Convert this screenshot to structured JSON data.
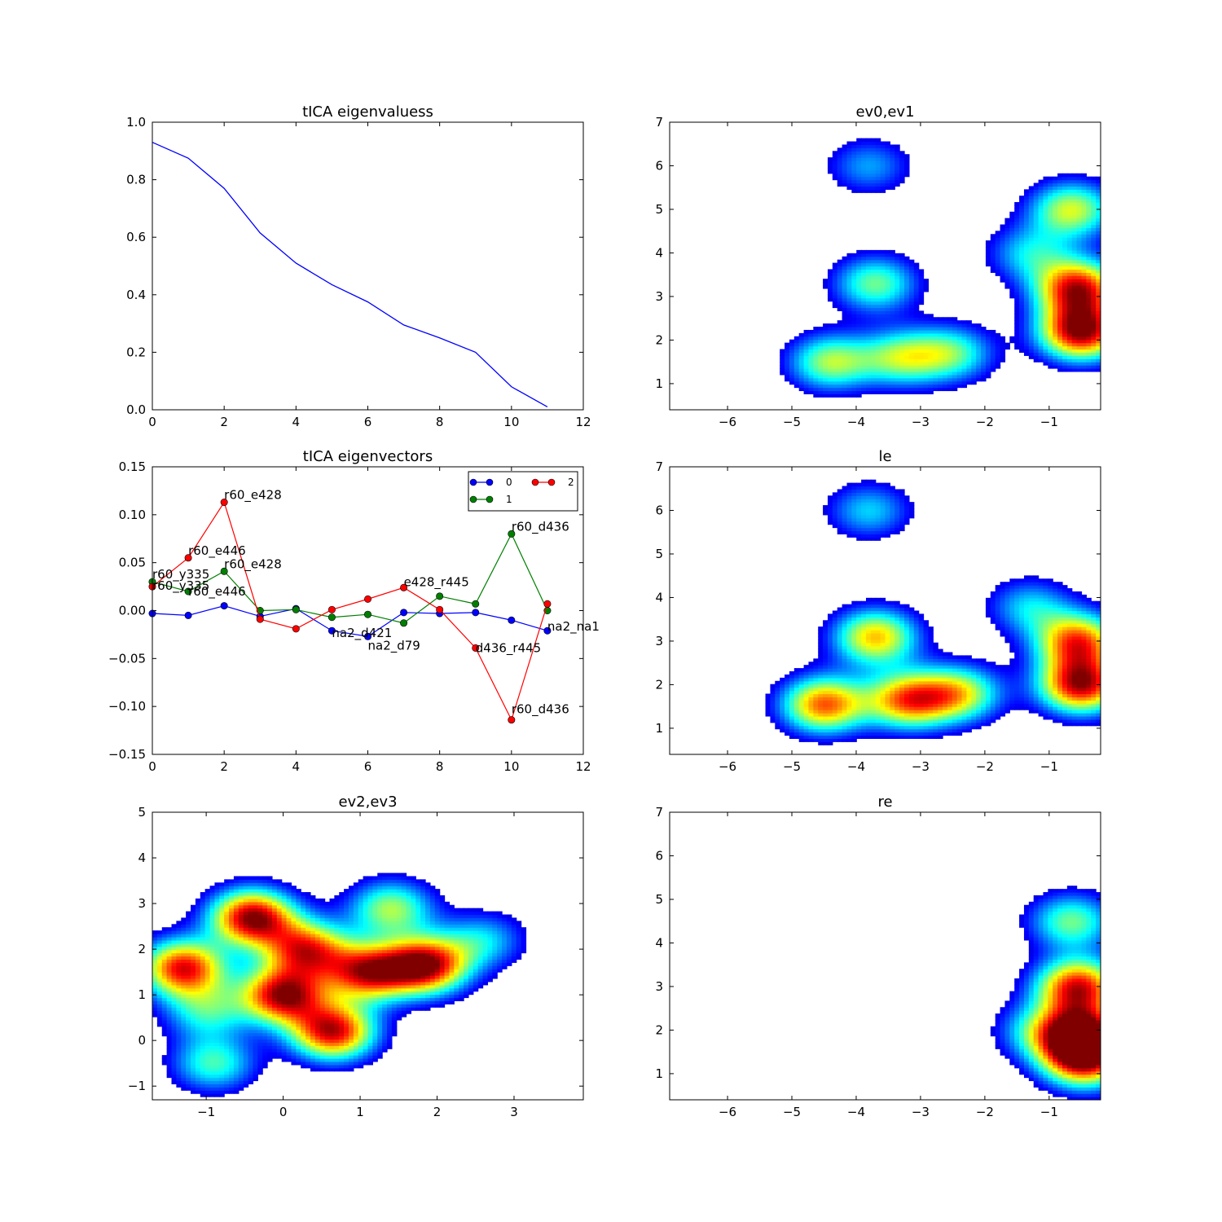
{
  "colors": {
    "series0": "#0000ff",
    "series1": "#007f00",
    "series2": "#ff0000",
    "colormap": "jet",
    "frame": "#000000",
    "background": "#ffffff"
  },
  "chart_data": [
    {
      "id": "eigenvalues",
      "type": "line",
      "title": "tICA eigenvaluess",
      "xlabel": "",
      "ylabel": "",
      "xlim": [
        0,
        12
      ],
      "ylim": [
        0.0,
        1.0
      ],
      "xticks": [
        "0",
        "2",
        "4",
        "6",
        "8",
        "10",
        "12"
      ],
      "yticks": [
        "0.0",
        "0.2",
        "0.4",
        "0.6",
        "0.8",
        "1.0"
      ],
      "x": [
        0,
        1,
        2,
        3,
        4,
        5,
        6,
        7,
        8,
        9,
        10,
        11
      ],
      "values": [
        0.93,
        0.875,
        0.77,
        0.615,
        0.51,
        0.435,
        0.375,
        0.295,
        0.25,
        0.2,
        0.08,
        0.01
      ],
      "grid": false
    },
    {
      "id": "eigenvectors",
      "type": "line",
      "title": "tICA eigenvectors",
      "xlabel": "",
      "ylabel": "",
      "xlim": [
        0,
        12
      ],
      "ylim": [
        -0.15,
        0.15
      ],
      "xticks": [
        "0",
        "2",
        "4",
        "6",
        "8",
        "10",
        "12"
      ],
      "yticks": [
        "−0.15",
        "−0.10",
        "−0.05",
        "0.00",
        "0.05",
        "0.10",
        "0.15"
      ],
      "x": [
        0,
        1,
        2,
        3,
        4,
        5,
        6,
        7,
        8,
        9,
        10,
        11
      ],
      "series": [
        {
          "name": "0",
          "values": [
            -0.003,
            -0.005,
            0.005,
            -0.006,
            0.002,
            -0.021,
            -0.027,
            -0.002,
            -0.003,
            -0.002,
            -0.01,
            -0.021
          ]
        },
        {
          "name": "1",
          "values": [
            0.03,
            0.02,
            0.041,
            0.0,
            0.001,
            -0.007,
            -0.004,
            -0.013,
            0.015,
            0.007,
            0.08,
            0.0
          ]
        },
        {
          "name": "2",
          "values": [
            0.025,
            0.055,
            0.113,
            -0.009,
            -0.019,
            0.001,
            0.012,
            0.024,
            0.001,
            -0.039,
            -0.114,
            0.007
          ]
        }
      ],
      "annotations": [
        {
          "x": 0,
          "y": 0.03,
          "text": "r60_y335"
        },
        {
          "x": 0,
          "y": 0.025,
          "text": "r60_y335"
        },
        {
          "x": 1,
          "y": 0.055,
          "text": "r60_e446"
        },
        {
          "x": 1,
          "y": 0.02,
          "text": "r60_e446"
        },
        {
          "x": 2,
          "y": 0.113,
          "text": "r60_e428"
        },
        {
          "x": 2,
          "y": 0.041,
          "text": "r60_e428"
        },
        {
          "x": 5,
          "y": -0.021,
          "text": "na2_d421"
        },
        {
          "x": 6,
          "y": -0.027,
          "text": "na2_d79"
        },
        {
          "x": 7,
          "y": 0.024,
          "text": "e428_r445"
        },
        {
          "x": 9,
          "y": -0.039,
          "text": "d436_r445"
        },
        {
          "x": 10,
          "y": 0.08,
          "text": "r60_d436"
        },
        {
          "x": 10,
          "y": -0.114,
          "text": "r60_d436"
        },
        {
          "x": 11,
          "y": -0.021,
          "text": "na2_na1"
        }
      ],
      "legend": {
        "placement": "top-right",
        "ncol": 2,
        "entries": [
          "0",
          "1",
          "2"
        ]
      },
      "grid": false
    },
    {
      "id": "ev2ev3",
      "type": "heatmap",
      "title": "ev2,ev3",
      "xlabel": "",
      "ylabel": "",
      "xlim": [
        -1.7,
        3.9
      ],
      "ylim": [
        -1.3,
        5.0
      ],
      "xticks": [
        "−1",
        "0",
        "1",
        "2",
        "3"
      ],
      "yticks": [
        "−1",
        "0",
        "1",
        "2",
        "3",
        "4",
        "5"
      ],
      "density_peaks": [
        {
          "x": -0.4,
          "y": 2.7,
          "level": 1.0
        },
        {
          "x": 1.85,
          "y": 1.65,
          "level": 0.98
        },
        {
          "x": 0.0,
          "y": 1.0,
          "level": 0.95
        },
        {
          "x": 0.65,
          "y": 0.2,
          "level": 0.93
        },
        {
          "x": -1.3,
          "y": 1.6,
          "level": 0.9
        },
        {
          "x": 1.1,
          "y": 1.5,
          "level": 0.85
        },
        {
          "x": 0.3,
          "y": 2.0,
          "level": 0.8
        },
        {
          "x": 1.4,
          "y": 2.9,
          "level": 0.55
        },
        {
          "x": -0.9,
          "y": -0.5,
          "level": 0.45
        },
        {
          "x": -1.0,
          "y": 0.65,
          "level": 0.4
        },
        {
          "x": 2.6,
          "y": 2.2,
          "level": 0.35
        }
      ],
      "colormap": "jet",
      "grid": false
    },
    {
      "id": "ev0ev1",
      "type": "heatmap",
      "title": "ev0,ev1",
      "xlabel": "",
      "ylabel": "",
      "xlim": [
        -6.9,
        -0.2
      ],
      "ylim": [
        0.4,
        7.0
      ],
      "xticks": [
        "−6",
        "−5",
        "−4",
        "−3",
        "−2",
        "−1"
      ],
      "yticks": [
        "1",
        "2",
        "3",
        "4",
        "5",
        "6",
        "7"
      ],
      "density_peaks": [
        {
          "x": -0.5,
          "y": 2.2,
          "level": 1.0
        },
        {
          "x": -0.55,
          "y": 3.2,
          "level": 0.9
        },
        {
          "x": -0.65,
          "y": 5.0,
          "level": 0.6
        },
        {
          "x": -3.7,
          "y": 3.3,
          "level": 0.5
        },
        {
          "x": -4.4,
          "y": 1.5,
          "level": 0.55
        },
        {
          "x": -3.3,
          "y": 1.6,
          "level": 0.5
        },
        {
          "x": -2.5,
          "y": 1.7,
          "level": 0.45
        },
        {
          "x": -3.8,
          "y": 6.0,
          "level": 0.3
        },
        {
          "x": -1.3,
          "y": 4.0,
          "level": 0.35
        }
      ],
      "colormap": "jet",
      "grid": false
    },
    {
      "id": "le",
      "type": "heatmap",
      "title": "le",
      "xlabel": "",
      "ylabel": "",
      "xlim": [
        -6.9,
        -0.2
      ],
      "ylim": [
        0.4,
        7.0
      ],
      "xticks": [
        "−6",
        "−5",
        "−4",
        "−3",
        "−2",
        "−1"
      ],
      "yticks": [
        "1",
        "2",
        "3",
        "4",
        "5",
        "6",
        "7"
      ],
      "density_peaks": [
        {
          "x": -0.5,
          "y": 2.0,
          "level": 0.95
        },
        {
          "x": -0.55,
          "y": 3.0,
          "level": 0.8
        },
        {
          "x": -3.7,
          "y": 3.1,
          "level": 0.7
        },
        {
          "x": -4.5,
          "y": 1.55,
          "level": 0.8
        },
        {
          "x": -3.2,
          "y": 1.65,
          "level": 0.75
        },
        {
          "x": -2.4,
          "y": 1.8,
          "level": 0.6
        },
        {
          "x": -3.8,
          "y": 6.0,
          "level": 0.35
        },
        {
          "x": -1.3,
          "y": 3.8,
          "level": 0.35
        }
      ],
      "colormap": "jet",
      "grid": false
    },
    {
      "id": "re",
      "type": "heatmap",
      "title": "re",
      "xlabel": "",
      "ylabel": "",
      "xlim": [
        -6.9,
        -0.2
      ],
      "ylim": [
        0.4,
        7.0
      ],
      "xticks": [
        "−6",
        "−5",
        "−4",
        "−3",
        "−2",
        "−1"
      ],
      "yticks": [
        "1",
        "2",
        "3",
        "4",
        "5",
        "6",
        "7"
      ],
      "density_peaks": [
        {
          "x": -0.5,
          "y": 1.9,
          "level": 1.0
        },
        {
          "x": -0.55,
          "y": 3.0,
          "level": 0.9
        },
        {
          "x": -0.45,
          "y": 1.3,
          "level": 0.8
        },
        {
          "x": -0.65,
          "y": 4.5,
          "level": 0.5
        },
        {
          "x": -1.2,
          "y": 2.0,
          "level": 0.3
        }
      ],
      "colormap": "jet",
      "grid": false
    }
  ]
}
